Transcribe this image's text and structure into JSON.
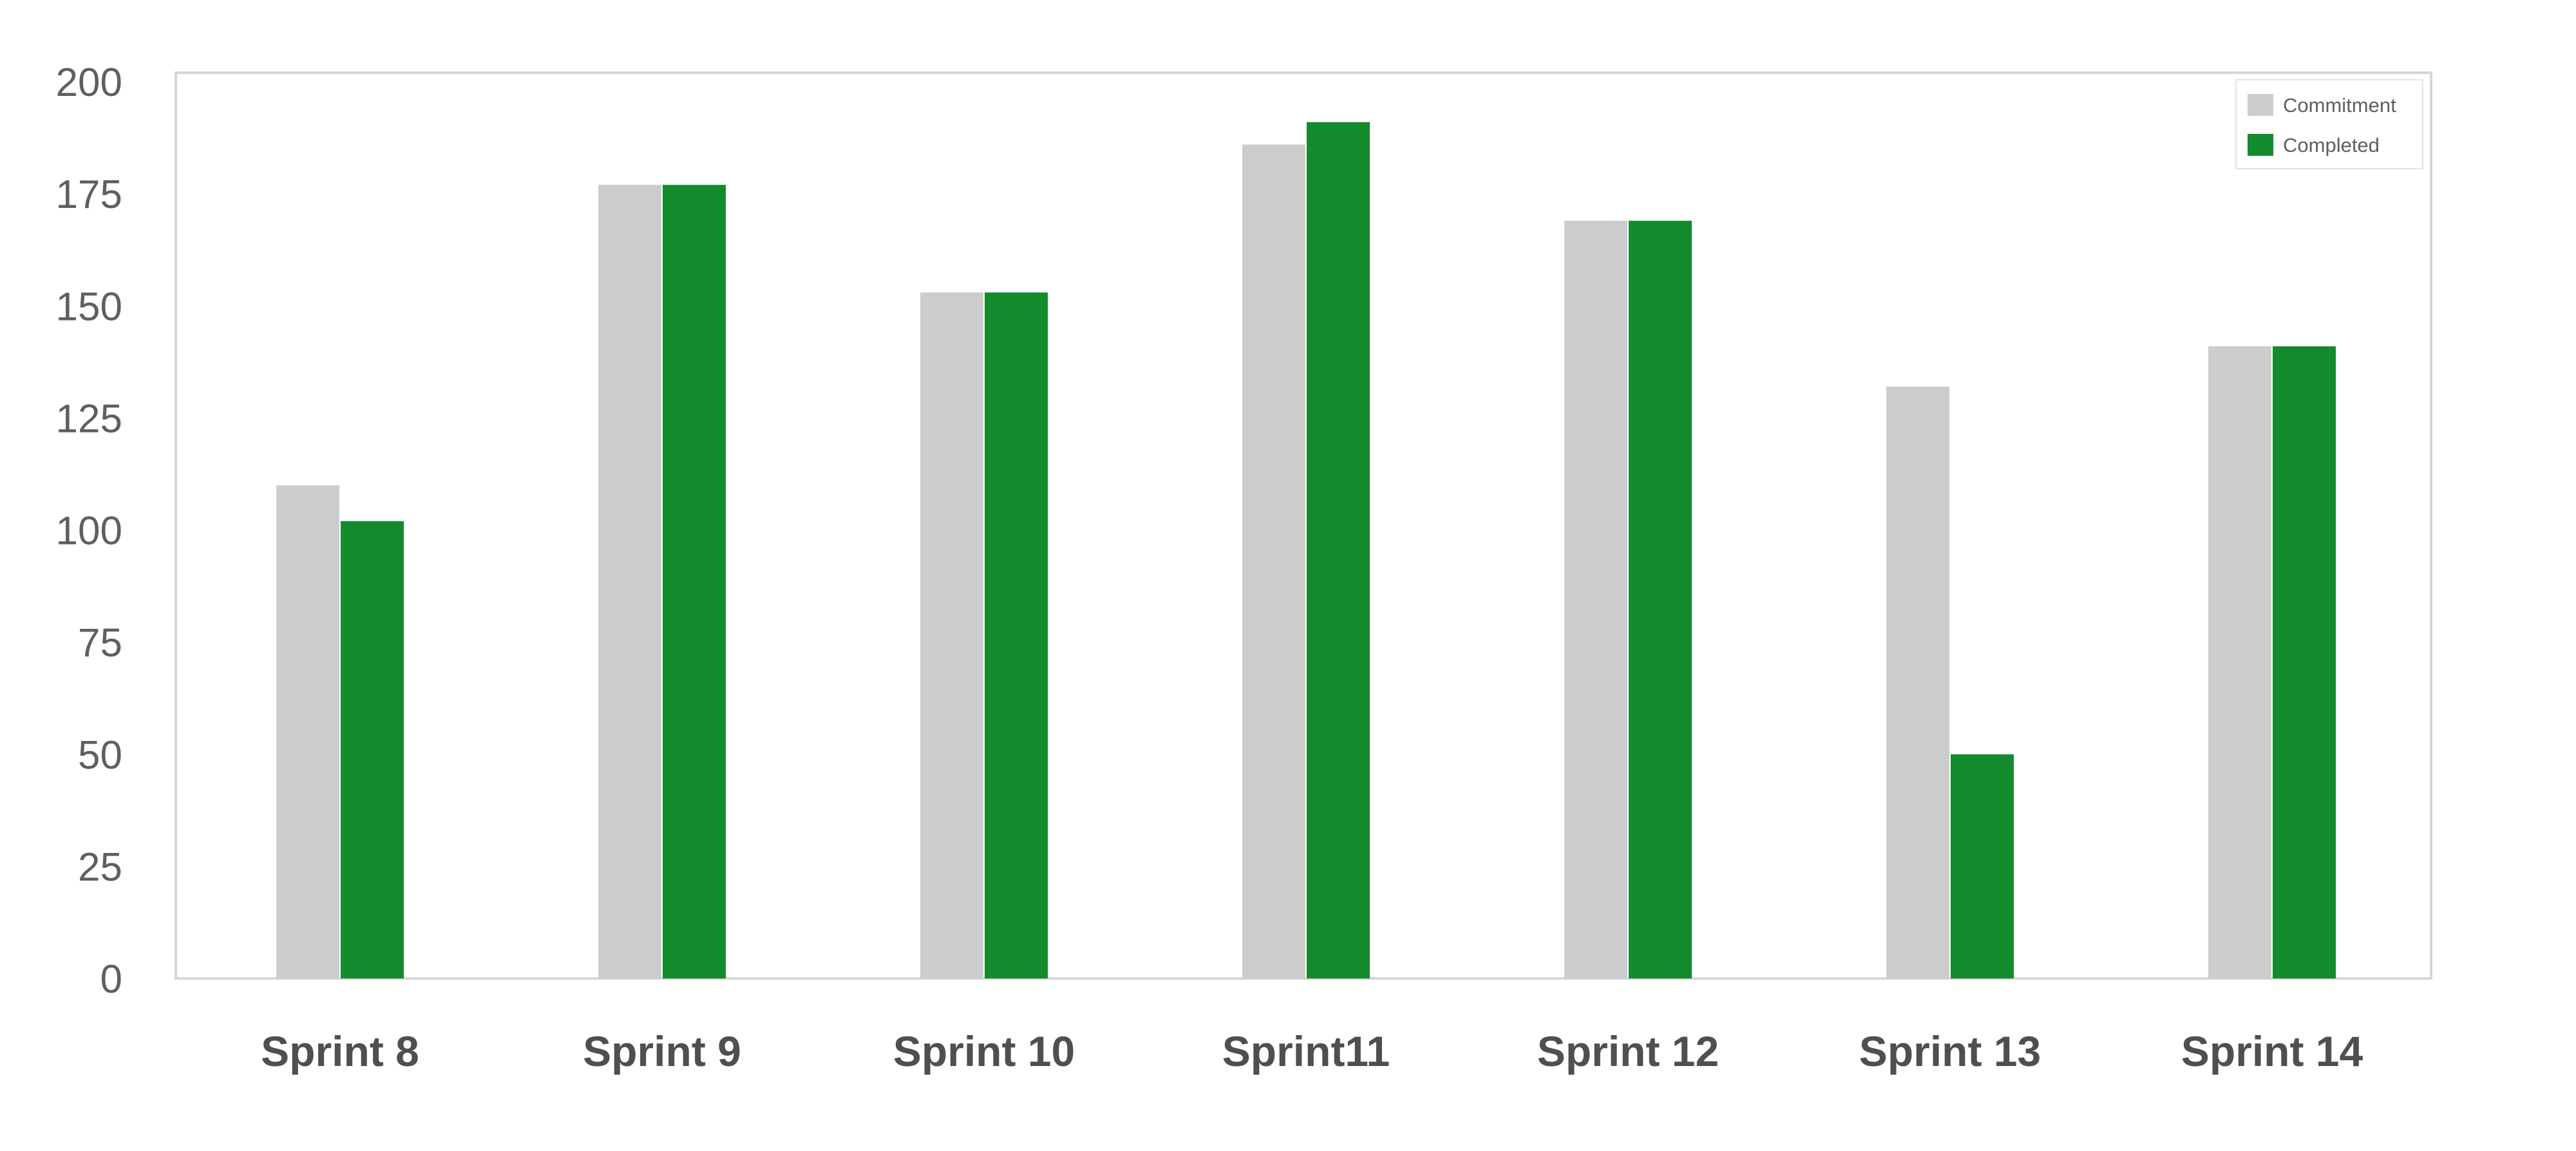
{
  "chart_data": {
    "type": "bar",
    "categories": [
      "Sprint 8",
      "Sprint 9",
      "Sprint 10",
      "Sprint11",
      "Sprint 12",
      "Sprint 13",
      "Sprint 14"
    ],
    "series": [
      {
        "name": "Commitment",
        "values": [
          110,
          177,
          153,
          186,
          169,
          132,
          141
        ],
        "color": "#cccccc"
      },
      {
        "name": "Completed",
        "values": [
          102,
          177,
          153,
          191,
          169,
          50,
          141
        ],
        "color": "#138a2c"
      }
    ],
    "title": "",
    "xlabel": "",
    "ylabel": "",
    "ylim": [
      0,
      200
    ],
    "yticks": [
      0,
      25,
      50,
      75,
      100,
      125,
      150,
      175,
      200
    ],
    "grid": false,
    "legend_position": "top-right",
    "frame_color": "#d6d6d6"
  }
}
